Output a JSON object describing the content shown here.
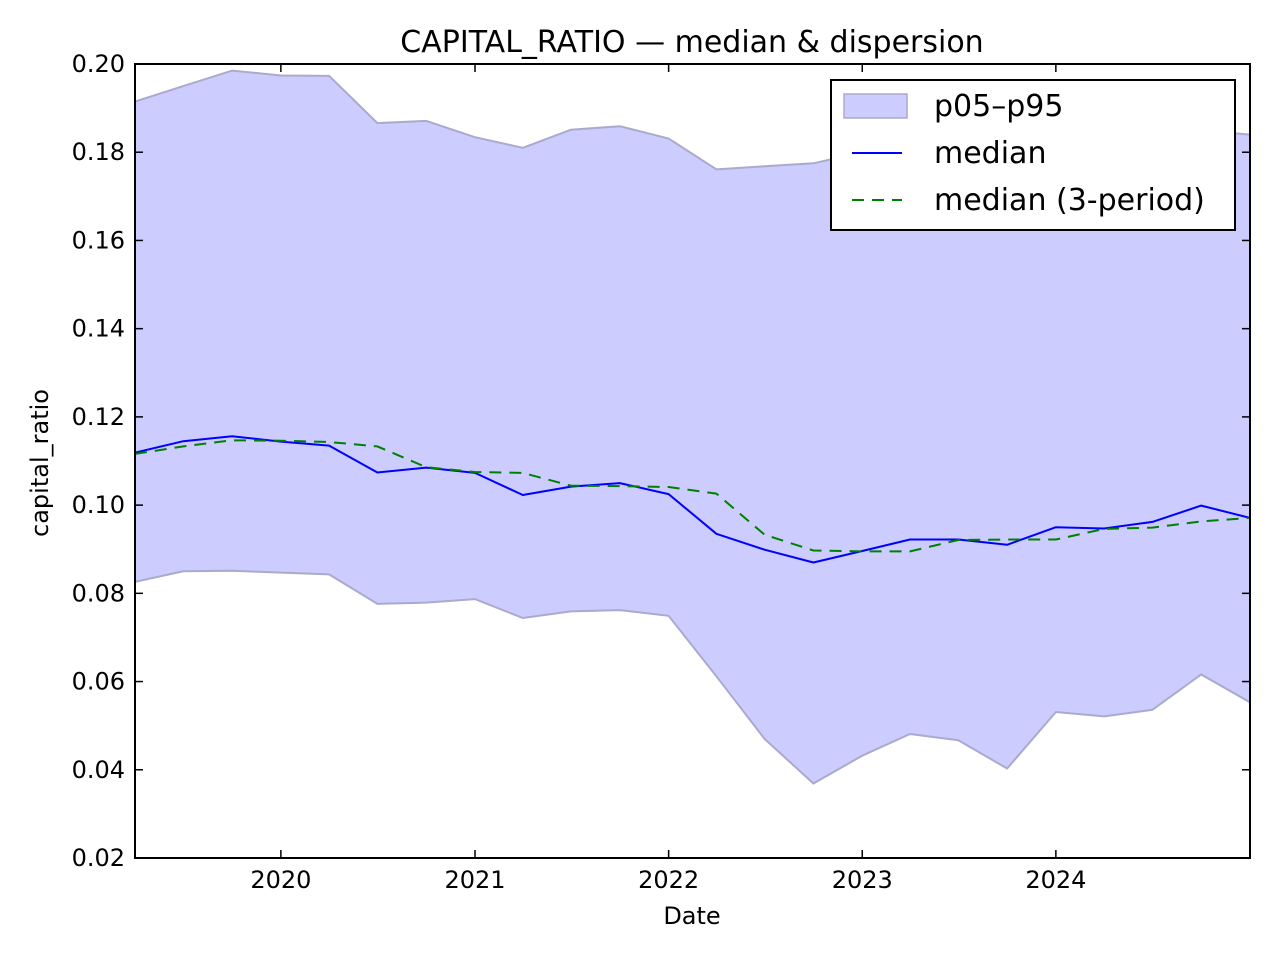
{
  "chart_data": {
    "type": "area",
    "title": "CAPITAL_RATIO — median & dispersion",
    "xlabel": "Date",
    "ylabel": "capital_ratio",
    "xlim": [
      "2019-04-01",
      "2025-01-01"
    ],
    "ylim": [
      0.02,
      0.2
    ],
    "x_ticks": [
      "2020",
      "2021",
      "2022",
      "2023",
      "2024"
    ],
    "y_ticks": [
      "0.02",
      "0.04",
      "0.06",
      "0.08",
      "0.10",
      "0.12",
      "0.14",
      "0.16",
      "0.18",
      "0.20"
    ],
    "x": [
      "2019-04-01",
      "2019-07-01",
      "2019-10-01",
      "2020-01-01",
      "2020-04-01",
      "2020-07-01",
      "2020-10-01",
      "2021-01-01",
      "2021-04-01",
      "2021-07-01",
      "2021-10-01",
      "2022-01-01",
      "2022-04-01",
      "2022-07-01",
      "2022-10-01",
      "2023-01-01",
      "2023-04-01",
      "2023-07-01",
      "2023-10-01",
      "2024-01-01",
      "2024-04-01",
      "2024-07-01",
      "2024-10-01",
      "2025-01-01"
    ],
    "series": [
      {
        "name": "p05–p95",
        "kind": "band",
        "color": "#ccccff",
        "edge_color": "#aaaacc",
        "upper": [
          0.1915,
          0.195,
          0.1985,
          0.1974,
          0.1973,
          0.1866,
          0.1871,
          0.1834,
          0.181,
          0.1851,
          0.1859,
          0.1831,
          0.1761,
          0.1768,
          0.1775,
          0.18,
          0.181,
          0.182,
          0.183,
          0.184,
          0.185,
          0.185,
          0.185,
          0.184
        ],
        "lower": [
          0.0826,
          0.085,
          0.0851,
          0.0847,
          0.0843,
          0.0776,
          0.0779,
          0.0787,
          0.0744,
          0.0759,
          0.0762,
          0.0749,
          0.0612,
          0.047,
          0.0369,
          0.0432,
          0.0481,
          0.0467,
          0.0403,
          0.0531,
          0.0521,
          0.0536,
          0.0616,
          0.0553
        ]
      },
      {
        "name": "median",
        "kind": "line",
        "color": "#0000ff",
        "dash": "solid",
        "values": [
          0.1119,
          0.1145,
          0.1156,
          0.1144,
          0.1135,
          0.1074,
          0.1085,
          0.1073,
          0.1023,
          0.1042,
          0.105,
          0.1025,
          0.0935,
          0.0899,
          0.087,
          0.0896,
          0.0922,
          0.0922,
          0.091,
          0.095,
          0.0947,
          0.0962,
          0.0999,
          0.0971
        ]
      },
      {
        "name": "median (3-period)",
        "kind": "line",
        "color": "#008000",
        "dash": "dashed",
        "values": [
          0.1116,
          0.1133,
          0.1147,
          0.1146,
          0.1143,
          0.1133,
          0.1086,
          0.1075,
          0.1073,
          0.1044,
          0.1043,
          0.1041,
          0.1026,
          0.0933,
          0.0897,
          0.0895,
          0.0895,
          0.0921,
          0.0922,
          0.0922,
          0.0946,
          0.0949,
          0.0963,
          0.0971
        ]
      }
    ],
    "legend": {
      "position": "top-right",
      "items": [
        "p05–p95",
        "median",
        "median (3-period)"
      ]
    },
    "grid": false
  }
}
